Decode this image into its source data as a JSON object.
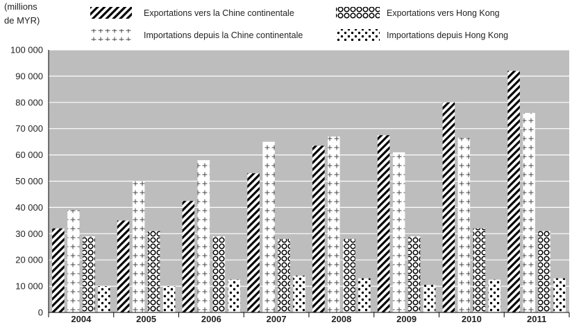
{
  "chart_data": {
    "type": "bar",
    "unit_label_line1": "(millions",
    "unit_label_line2": "de MYR)",
    "categories": [
      "2004",
      "2005",
      "2006",
      "2007",
      "2008",
      "2009",
      "2010",
      "2011"
    ],
    "series": [
      {
        "name": "Exportations vers la Chine continentale",
        "pattern": "diagonal",
        "values": [
          32000,
          35000,
          42500,
          53000,
          63500,
          67500,
          80000,
          92000
        ]
      },
      {
        "name": "Importations depuis la Chine continentale",
        "pattern": "plus",
        "values": [
          39000,
          50000,
          58000,
          65000,
          67000,
          61000,
          66500,
          76000
        ]
      },
      {
        "name": "Exportations vers Hong Kong",
        "pattern": "circles",
        "values": [
          29000,
          31000,
          29000,
          28000,
          28000,
          29000,
          32000,
          31000
        ]
      },
      {
        "name": "Importations depuis Hong Kong",
        "pattern": "dots",
        "values": [
          10000,
          10000,
          12500,
          14000,
          13000,
          10500,
          12500,
          13000
        ]
      }
    ],
    "y_ticks": [
      0,
      10000,
      20000,
      30000,
      40000,
      50000,
      60000,
      70000,
      80000,
      90000,
      100000
    ],
    "y_tick_labels": [
      "0",
      "10 000",
      "20 000",
      "30 000",
      "40 000",
      "50 000",
      "60 000",
      "70 000",
      "80 000",
      "90 000",
      "100 000"
    ],
    "ylim": [
      0,
      100000
    ],
    "grid": true,
    "legend_position": "top",
    "colors": {
      "plot_background": "#bdbdbd",
      "bar": "#ffffff",
      "pattern": "#000000",
      "grid": "#ffffff"
    }
  }
}
